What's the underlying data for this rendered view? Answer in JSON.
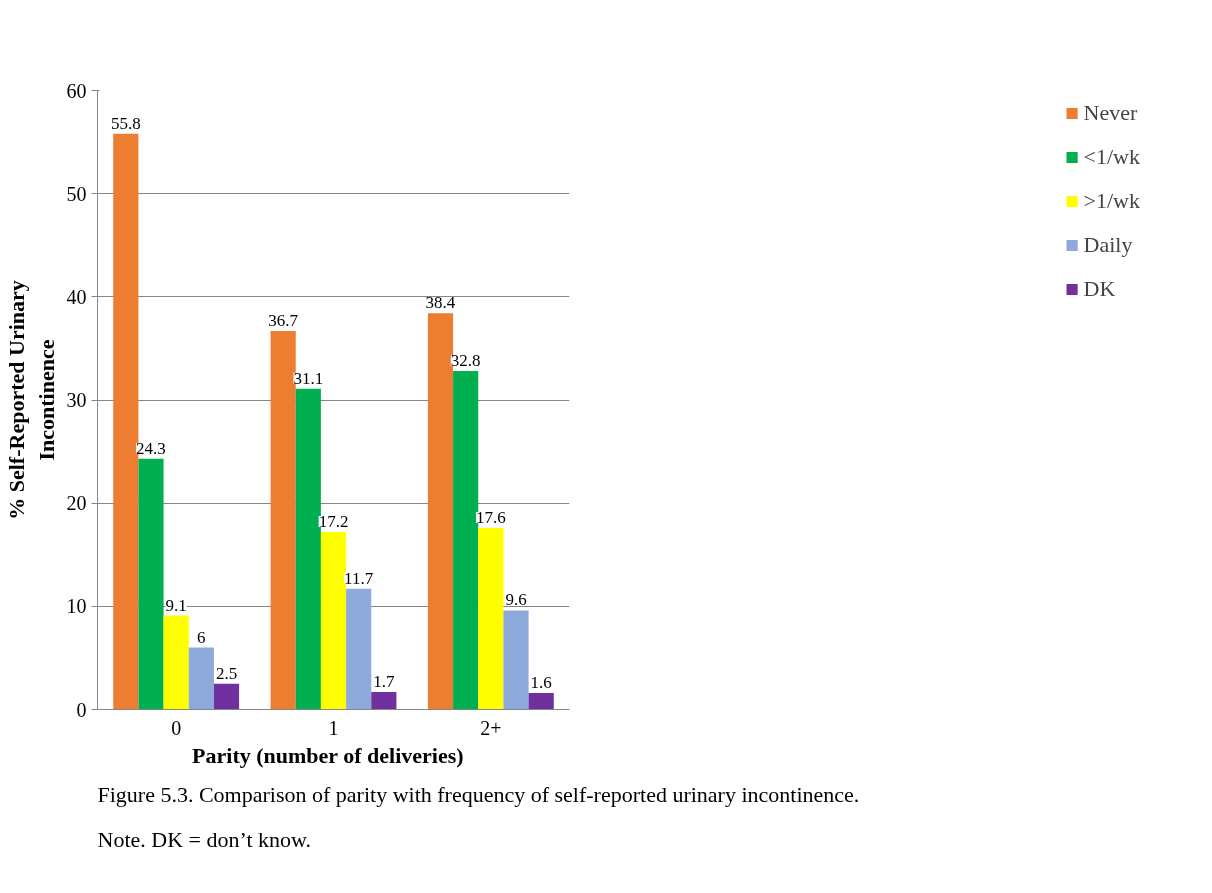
{
  "chart_data": {
    "type": "bar",
    "categories": [
      "0",
      "1",
      "2+"
    ],
    "series": [
      {
        "name": "Never",
        "color": "#ed7d31",
        "values": [
          55.8,
          36.7,
          38.4
        ]
      },
      {
        "name": "<1/wk",
        "color": "#00b050",
        "values": [
          24.3,
          31.1,
          32.8
        ]
      },
      {
        "name": ">1/wk",
        "color": "#ffff00",
        "values": [
          9.1,
          17.2,
          17.6
        ]
      },
      {
        "name": "Daily",
        "color": "#8eaadb",
        "values": [
          6,
          11.7,
          9.6
        ]
      },
      {
        "name": "DK",
        "color": "#7030a0",
        "values": [
          2.5,
          1.7,
          1.6
        ]
      }
    ],
    "xlabel": "Parity  (number  of deliveries)",
    "ylabel": "% Self-Reported Urinary\nIncontinence",
    "ylim": [
      0,
      60
    ],
    "yticks": [
      0,
      10,
      20,
      30,
      40,
      50,
      60
    ],
    "grid": "y",
    "legend": "right",
    "data_labels": true,
    "annotations": [
      "Figure 5.3.  Comparison of parity with frequency of self-reported urinary incontinence.",
      "Note.  DK = don’t know."
    ]
  }
}
